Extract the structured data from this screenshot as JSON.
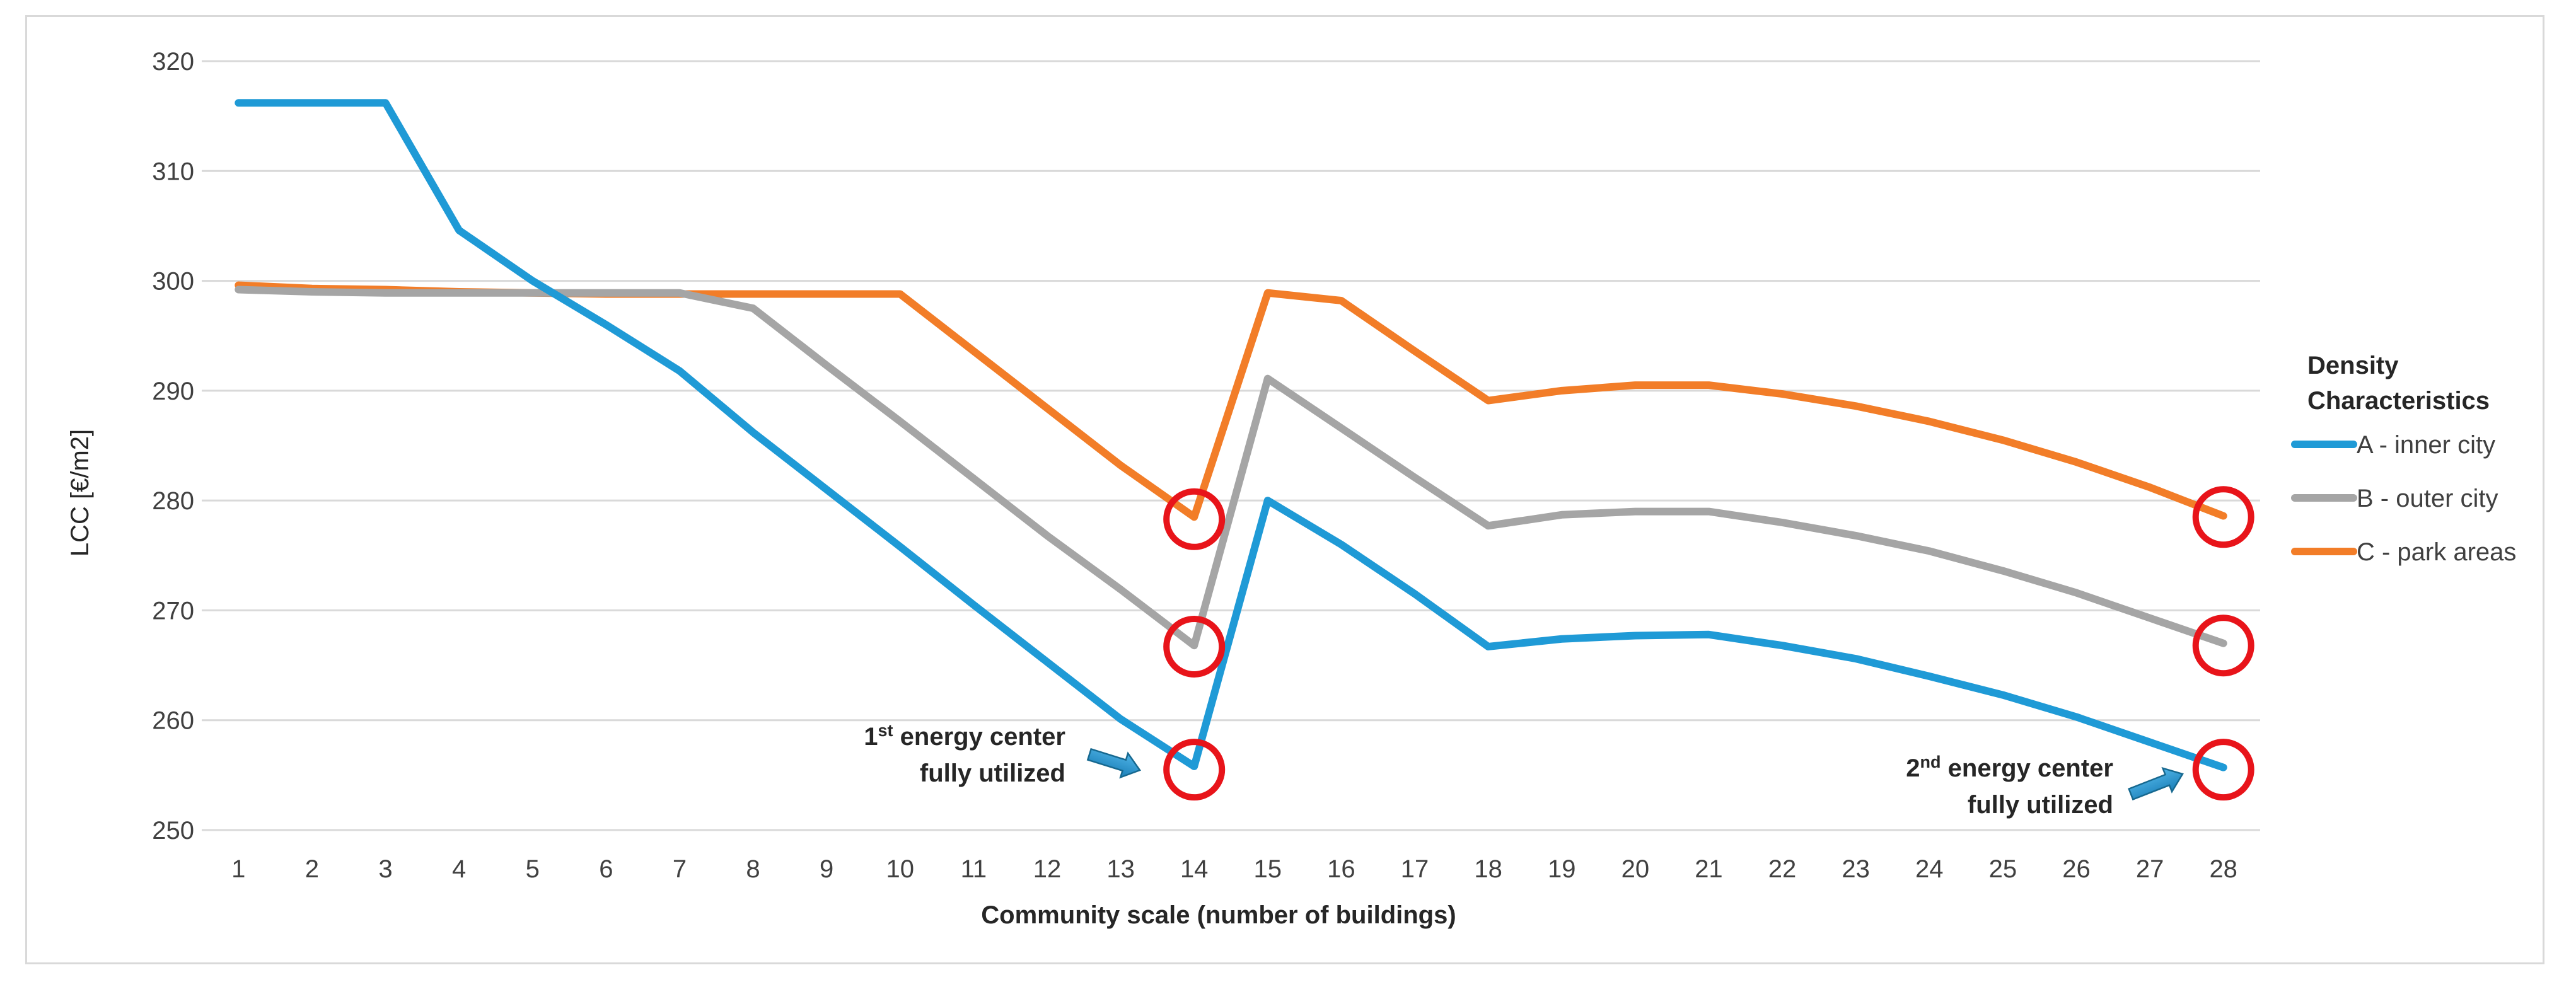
{
  "chart_data": {
    "type": "line",
    "title": "",
    "xlabel": "Community scale (number of buildings)",
    "ylabel": "LCC [€/m2]",
    "ylim": [
      250,
      320
    ],
    "yticks": [
      250,
      260,
      270,
      280,
      290,
      300,
      310,
      320
    ],
    "grid": true,
    "categories": [
      "1",
      "2",
      "3",
      "4",
      "5",
      "6",
      "7",
      "8",
      "9",
      "10",
      "11",
      "12",
      "13",
      "14",
      "15",
      "16",
      "17",
      "18",
      "19",
      "20",
      "21",
      "22",
      "23",
      "24",
      "25",
      "26",
      "27",
      "28"
    ],
    "series": [
      {
        "name": "A - inner city",
        "color": "#1f9ad6",
        "values": [
          316.2,
          316.2,
          316.2,
          304.6,
          300.0,
          296.0,
          291.8,
          286.2,
          281.0,
          275.8,
          270.5,
          265.3,
          260.1,
          255.8,
          280.0,
          276.0,
          271.5,
          266.7,
          267.4,
          267.7,
          267.8,
          266.8,
          265.6,
          264.0,
          262.3,
          260.3,
          258.0,
          255.7
        ]
      },
      {
        "name": "B - outer city",
        "color": "#a5a5a5",
        "values": [
          299.2,
          299.0,
          298.9,
          298.9,
          298.9,
          298.9,
          298.9,
          297.5,
          292.3,
          287.2,
          282.0,
          276.8,
          271.9,
          266.8,
          291.1,
          286.6,
          282.1,
          277.7,
          278.7,
          279.0,
          279.0,
          278.0,
          276.8,
          275.4,
          273.6,
          271.6,
          269.3,
          267.0
        ]
      },
      {
        "name": "C - park areas",
        "color": "#f27d28",
        "values": [
          299.6,
          299.3,
          299.2,
          299.0,
          298.9,
          298.8,
          298.8,
          298.8,
          298.8,
          298.8,
          293.6,
          288.4,
          283.2,
          278.5,
          298.9,
          298.2,
          293.6,
          289.1,
          290.0,
          290.5,
          290.5,
          289.7,
          288.6,
          287.2,
          285.5,
          283.5,
          281.2,
          278.6
        ]
      }
    ],
    "legend": {
      "title": "Density Characteristics",
      "position": "right"
    },
    "highlight_circles": [
      {
        "category": "14",
        "value": 278.3
      },
      {
        "category": "14",
        "value": 266.7
      },
      {
        "category": "14",
        "value": 255.5
      },
      {
        "category": "28",
        "value": 278.5
      },
      {
        "category": "28",
        "value": 266.8
      },
      {
        "category": "28",
        "value": 255.5
      }
    ],
    "annotations": [
      {
        "sup": "st",
        "line1_prefix": "1",
        "line1_rest": " energy center",
        "line2": "fully utilized",
        "target_category": "14",
        "target_value": 255.6
      },
      {
        "sup": "nd",
        "line1_prefix": "2",
        "line1_rest": " energy center",
        "line2": "fully utilized",
        "target_category": "28",
        "target_value": 255.6
      }
    ]
  }
}
